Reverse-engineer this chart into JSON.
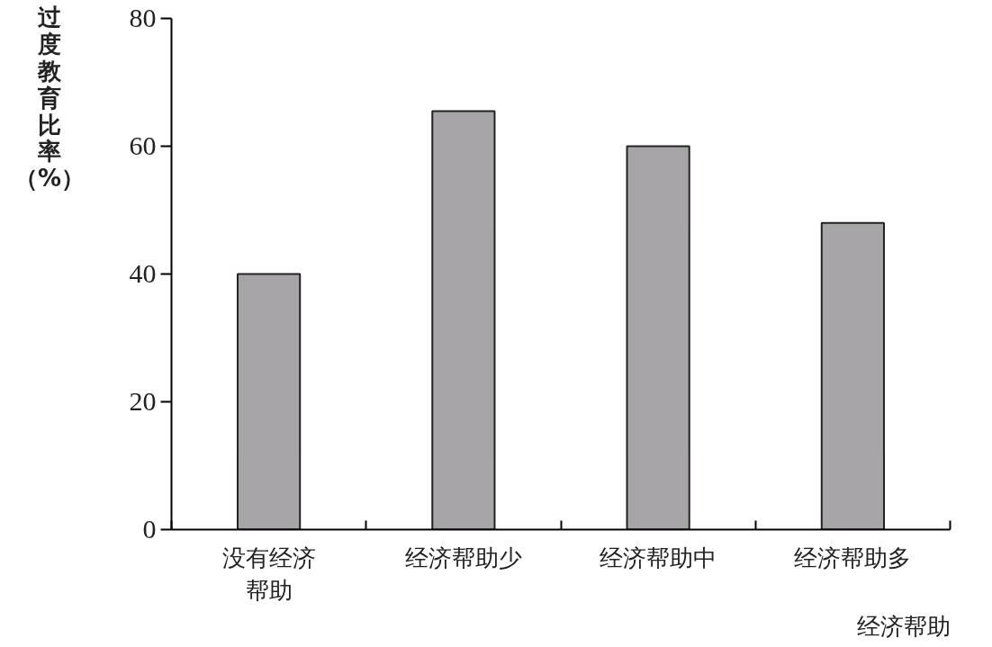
{
  "chart_data": {
    "type": "bar",
    "ylabel": "过度教育比率（%）",
    "xlabel": "经济帮助",
    "categories": [
      "没有经济帮助",
      "经济帮助少",
      "经济帮助中",
      "经济帮助多"
    ],
    "values": [
      40,
      65.5,
      60,
      48
    ],
    "color": "#a7a5a8",
    "ylim": [
      0,
      80
    ],
    "yticks": [
      0,
      20,
      40,
      60,
      80
    ],
    "grid": false
  }
}
